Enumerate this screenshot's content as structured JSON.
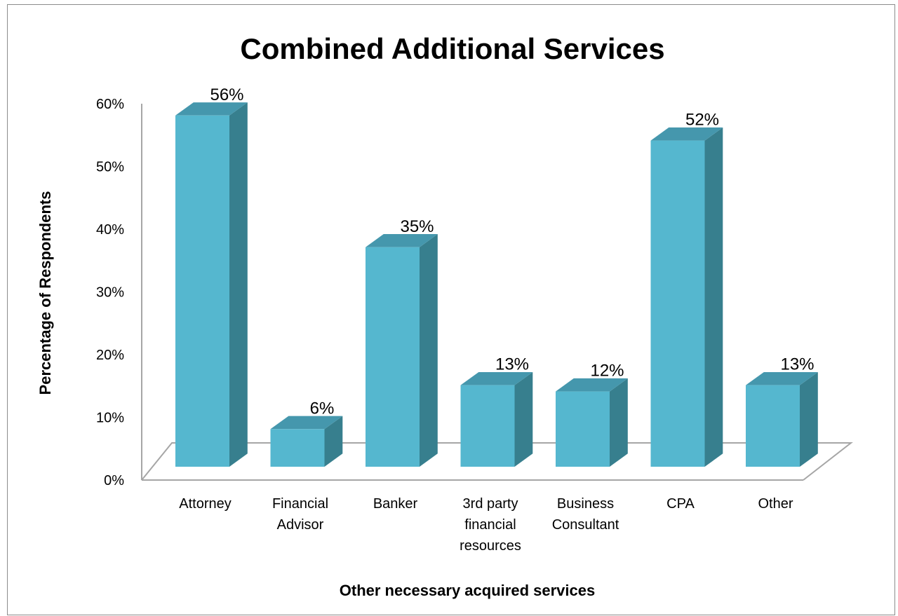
{
  "chart_data": {
    "type": "bar",
    "title": "Combined Additional Services",
    "xlabel": "Other necessary acquired services",
    "ylabel": "Percentage of Respondents",
    "categories": [
      [
        "Attorney"
      ],
      [
        "Financial",
        "Advisor"
      ],
      [
        "Banker"
      ],
      [
        "3rd party",
        "financial",
        "resources"
      ],
      [
        "Business",
        "Consultant"
      ],
      [
        "CPA"
      ],
      [
        "Other"
      ]
    ],
    "values": [
      56,
      6,
      35,
      13,
      12,
      52,
      13
    ],
    "data_labels": [
      "56%",
      "6%",
      "35%",
      "13%",
      "12%",
      "52%",
      "13%"
    ],
    "yticks": [
      "0%",
      "10%",
      "20%",
      "30%",
      "40%",
      "50%",
      "60%"
    ],
    "ylim": [
      0,
      60
    ],
    "grid": false,
    "legend": "none",
    "style": "3d-column",
    "colors": {
      "front": "#55b7cf",
      "top": "#4597ad",
      "side": "#377f8e",
      "axis": "#a6a6a6"
    }
  }
}
